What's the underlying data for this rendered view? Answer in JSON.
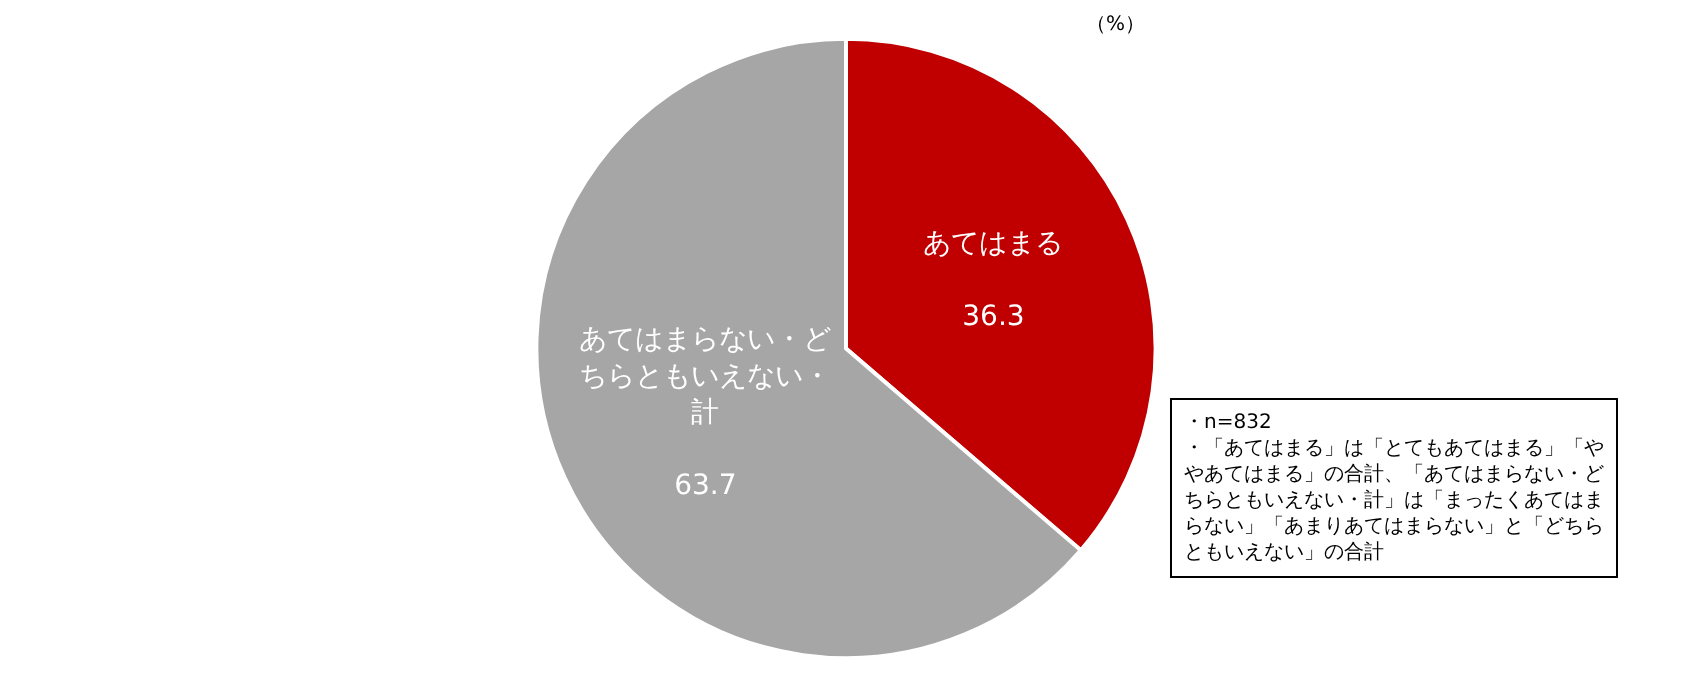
{
  "chart_data": {
    "type": "pie",
    "categories": [
      "あてはまる",
      "あてはまらない・どちらともいえない・計"
    ],
    "values": [
      36.3,
      63.7
    ],
    "colors": [
      "#c00000",
      "#a6a6a6"
    ],
    "data_labels": true,
    "legend": false,
    "annotations": [
      "（%）",
      "・n=832",
      "・「あてはまる」は「とてもあてはまる」「ややあてはまる」の合計、「あてはまらない・どちらともいえない・計」は「まったくあてはまらない」「あまりあてはまらない」と「どちらともいえない」の合計"
    ]
  }
}
